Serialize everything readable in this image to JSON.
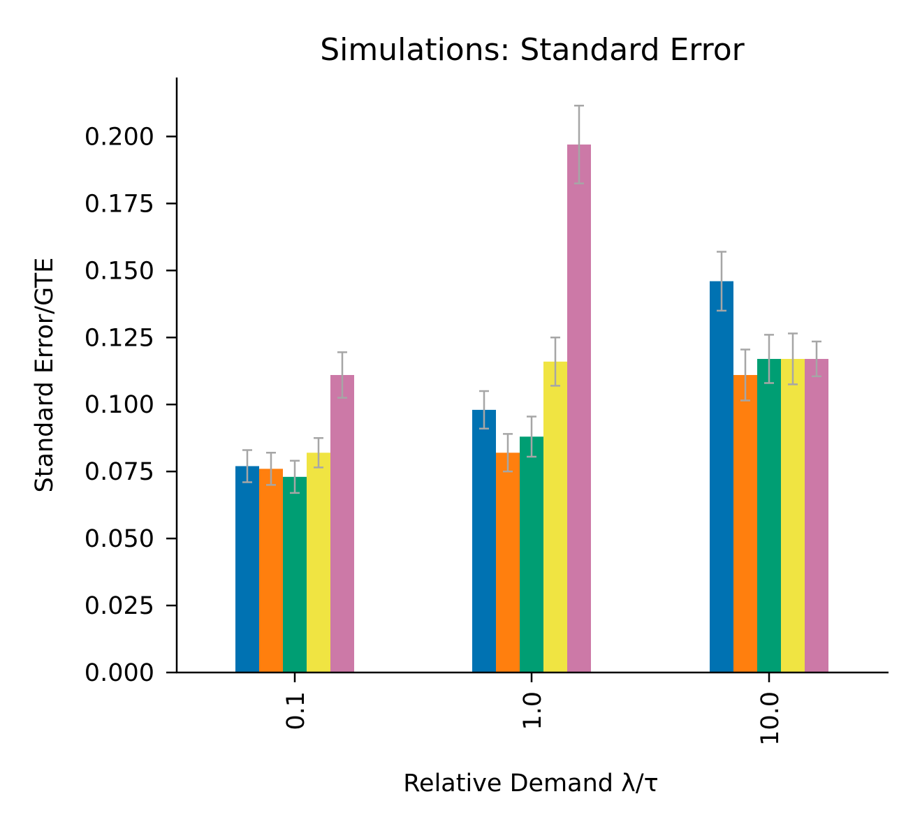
{
  "chart_data": {
    "type": "bar",
    "title": "Simulations: Standard Error",
    "xlabel": "Relative Demand λ/τ",
    "ylabel": "Standard Error/GTE",
    "categories": [
      "0.1",
      "1.0",
      "10.0"
    ],
    "ylim": [
      0,
      0.222
    ],
    "yticks": [
      "0.000",
      "0.025",
      "0.050",
      "0.075",
      "0.100",
      "0.125",
      "0.150",
      "0.175",
      "0.200"
    ],
    "grid": false,
    "series": [
      {
        "color": "#0072b2",
        "values": [
          0.077,
          0.098,
          0.146
        ],
        "err": [
          0.006,
          0.007,
          0.011
        ]
      },
      {
        "color": "#ff7f0e",
        "values": [
          0.076,
          0.082,
          0.111
        ],
        "err": [
          0.006,
          0.007,
          0.0095
        ]
      },
      {
        "color": "#009e73",
        "values": [
          0.073,
          0.088,
          0.117
        ],
        "err": [
          0.006,
          0.0075,
          0.009
        ]
      },
      {
        "color": "#f0e442",
        "values": [
          0.082,
          0.116,
          0.117
        ],
        "err": [
          0.0055,
          0.009,
          0.0095
        ]
      },
      {
        "color": "#cc79a7",
        "values": [
          0.111,
          0.197,
          0.117
        ],
        "err": [
          0.0085,
          0.0145,
          0.0065
        ]
      }
    ]
  }
}
